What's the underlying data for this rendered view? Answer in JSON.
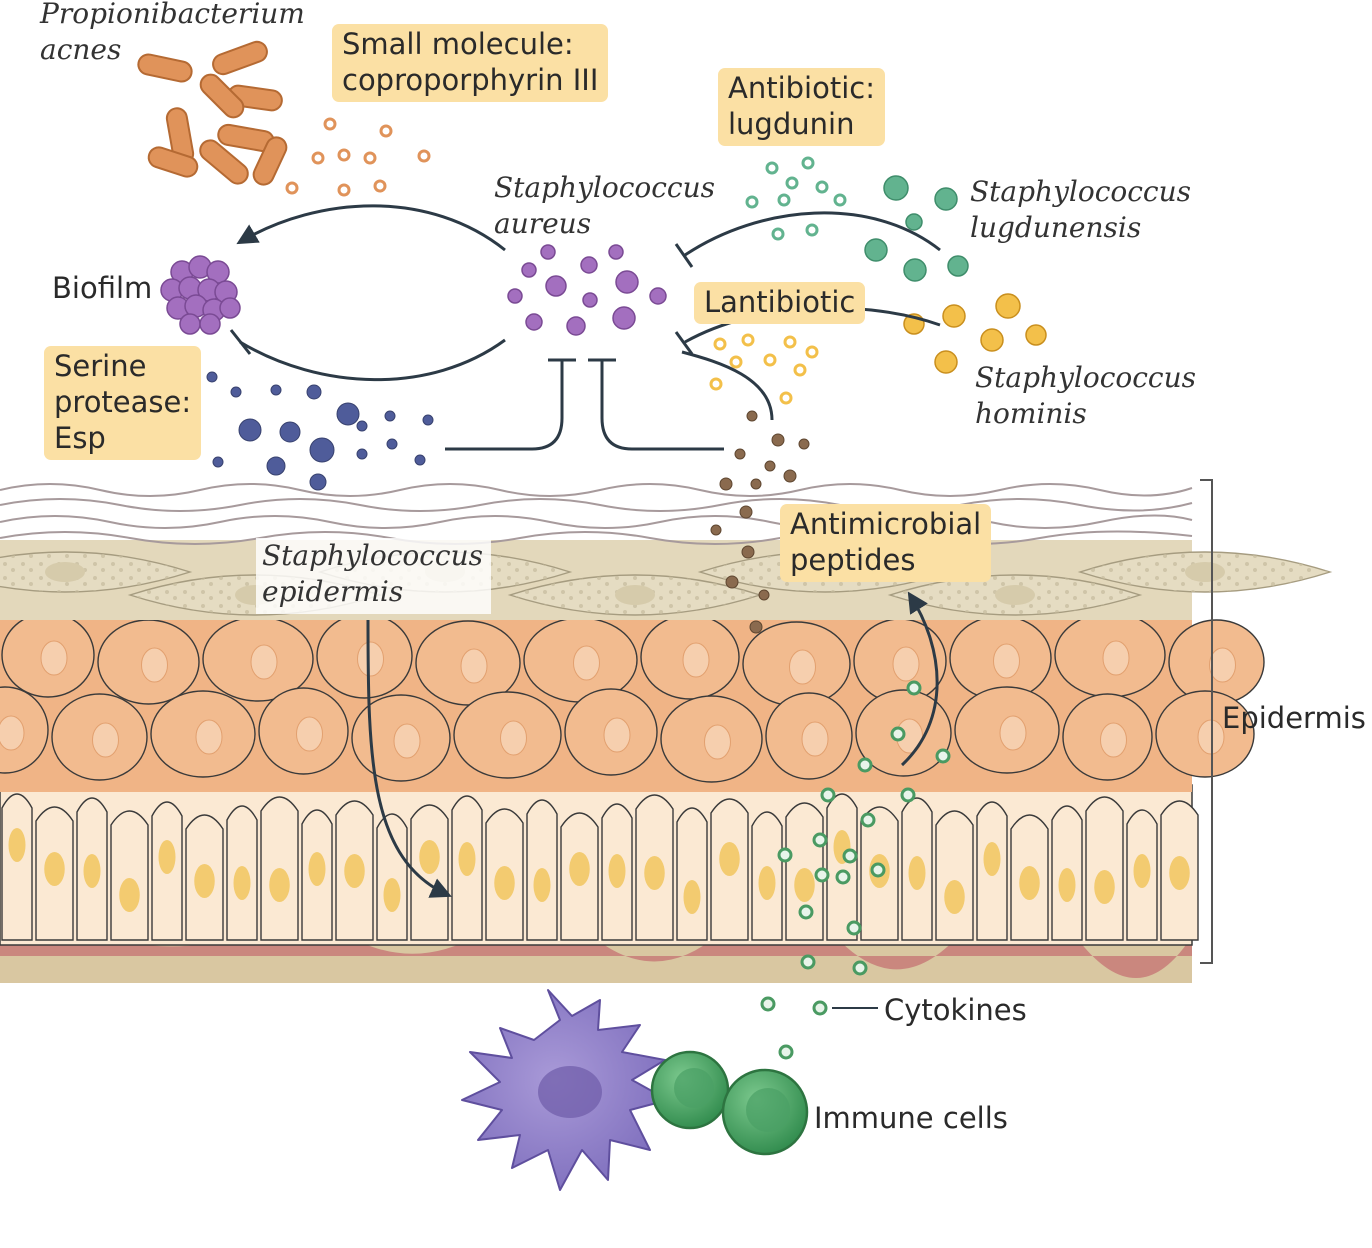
{
  "colors": {
    "label_box": "#fbe0a4",
    "p_acnes": "#e0935a",
    "s_aureus": "#a36fbf",
    "s_lugdunensis": "#62b38f",
    "s_hominis": "#f3c04a",
    "protease": "#4f5c9a",
    "amp": "#8a6a4e",
    "cytokine": "#74b98e",
    "immune_purple": "#8d7cc7",
    "immune_green": "#3f9a5a",
    "keratinocyte": "#f2bb8f",
    "basal": "#fbe9d3",
    "basal_nucleus": "#f3cb70",
    "corneocyte": "#e5dcc2"
  },
  "labels": {
    "p_acnes": "Propionibacterium\nacnes",
    "small_molecule": "Small molecule:\ncoproporphyrin III",
    "antibiotic": "Antibiotic:\nlugdunin",
    "s_aureus": "Staphylococcus\naureus",
    "s_lugdunensis": "Staphylococcus\nlugdunensis",
    "biofilm": "Biofilm",
    "lantibiotic": "Lantibiotic",
    "serine_protease": "Serine\nprotease:\nEsp",
    "s_hominis": "Staphylococcus\nhominis",
    "s_epidermis": "Staphylococcus\nepidermis",
    "amp": "Antimicrobial\npeptides",
    "epidermis": "Epidermis",
    "cytokines": "Cytokines",
    "immune_cells": "Immune cells"
  },
  "icons": [
    "rod-bacterium-icon",
    "coccus-bacterium-icon",
    "biofilm-cluster-icon",
    "dendritic-cell-icon",
    "lymphocyte-icon",
    "activation-arrow-icon",
    "inhibition-arrow-icon"
  ]
}
